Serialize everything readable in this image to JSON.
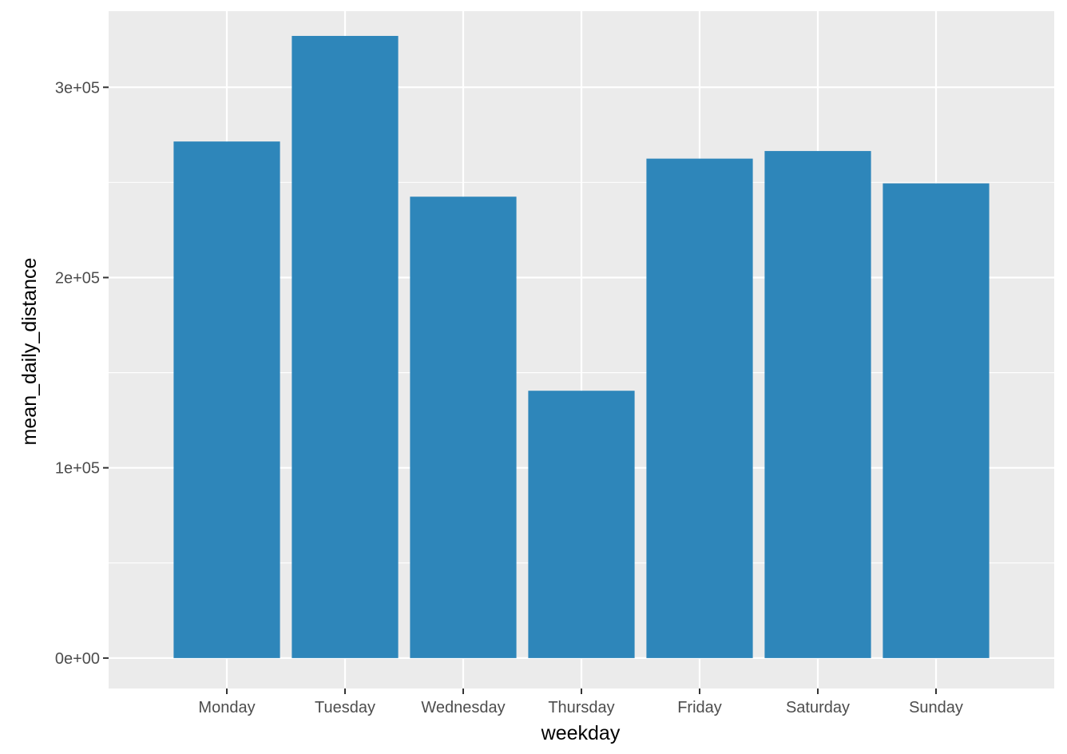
{
  "chart_data": {
    "type": "bar",
    "title": "",
    "xlabel": "weekday",
    "ylabel": "mean_daily_distance",
    "categories": [
      "Monday",
      "Tuesday",
      "Wednesday",
      "Thursday",
      "Friday",
      "Saturday",
      "Sunday"
    ],
    "values": [
      271500,
      327000,
      242500,
      140500,
      262500,
      266500,
      249500
    ],
    "ylim": [
      -16000,
      340000
    ],
    "yticks": [
      0,
      100000,
      200000,
      300000
    ],
    "ytick_labels": [
      "0e+00",
      "1e+05",
      "2e+05",
      "3e+05"
    ],
    "yminor": [
      50000,
      150000,
      250000
    ],
    "grid": true,
    "legend": "none",
    "colors": {
      "bar": "#2e86ba",
      "panel": "#ebebeb",
      "grid": "#ffffff",
      "tick": "#333333"
    }
  }
}
